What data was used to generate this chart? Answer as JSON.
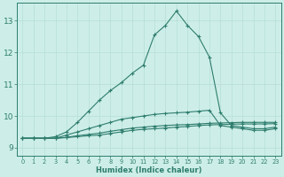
{
  "xlabel": "Humidex (Indice chaleur)",
  "x": [
    0,
    1,
    2,
    3,
    4,
    5,
    6,
    7,
    8,
    9,
    10,
    11,
    12,
    13,
    14,
    15,
    16,
    17,
    18,
    19,
    20,
    21,
    22,
    23
  ],
  "line_main": [
    9.3,
    9.3,
    9.3,
    9.35,
    9.5,
    9.8,
    10.15,
    10.5,
    10.8,
    11.05,
    11.35,
    11.6,
    12.55,
    12.85,
    13.3,
    12.85,
    12.5,
    11.85,
    10.1,
    9.7,
    9.65,
    9.6,
    9.6,
    9.65
  ],
  "line_mid": [
    9.3,
    9.3,
    9.3,
    9.3,
    9.4,
    9.5,
    9.6,
    9.7,
    9.8,
    9.9,
    9.95,
    10.0,
    10.05,
    10.08,
    10.1,
    10.12,
    10.15,
    10.18,
    9.7,
    9.65,
    9.6,
    9.55,
    9.55,
    9.6
  ],
  "line_flat1": [
    9.3,
    9.3,
    9.3,
    9.3,
    9.32,
    9.35,
    9.38,
    9.4,
    9.45,
    9.5,
    9.55,
    9.58,
    9.6,
    9.62,
    9.65,
    9.67,
    9.7,
    9.72,
    9.73,
    9.74,
    9.75,
    9.75,
    9.75,
    9.76
  ],
  "line_flat2": [
    9.3,
    9.3,
    9.3,
    9.3,
    9.33,
    9.38,
    9.42,
    9.46,
    9.52,
    9.57,
    9.62,
    9.65,
    9.68,
    9.7,
    9.72,
    9.73,
    9.75,
    9.77,
    9.78,
    9.79,
    9.8,
    9.8,
    9.8,
    9.8
  ],
  "line_color": "#2e7d6e",
  "bg_color": "#cdeee8",
  "grid_color": "#b5ddd7",
  "ylim": [
    8.75,
    13.55
  ],
  "yticks": [
    9,
    10,
    11,
    12,
    13
  ],
  "xlim": [
    -0.5,
    23.5
  ],
  "xticks": [
    0,
    1,
    2,
    3,
    4,
    5,
    6,
    7,
    8,
    9,
    10,
    11,
    12,
    13,
    14,
    15,
    16,
    17,
    18,
    19,
    20,
    21,
    22,
    23
  ]
}
